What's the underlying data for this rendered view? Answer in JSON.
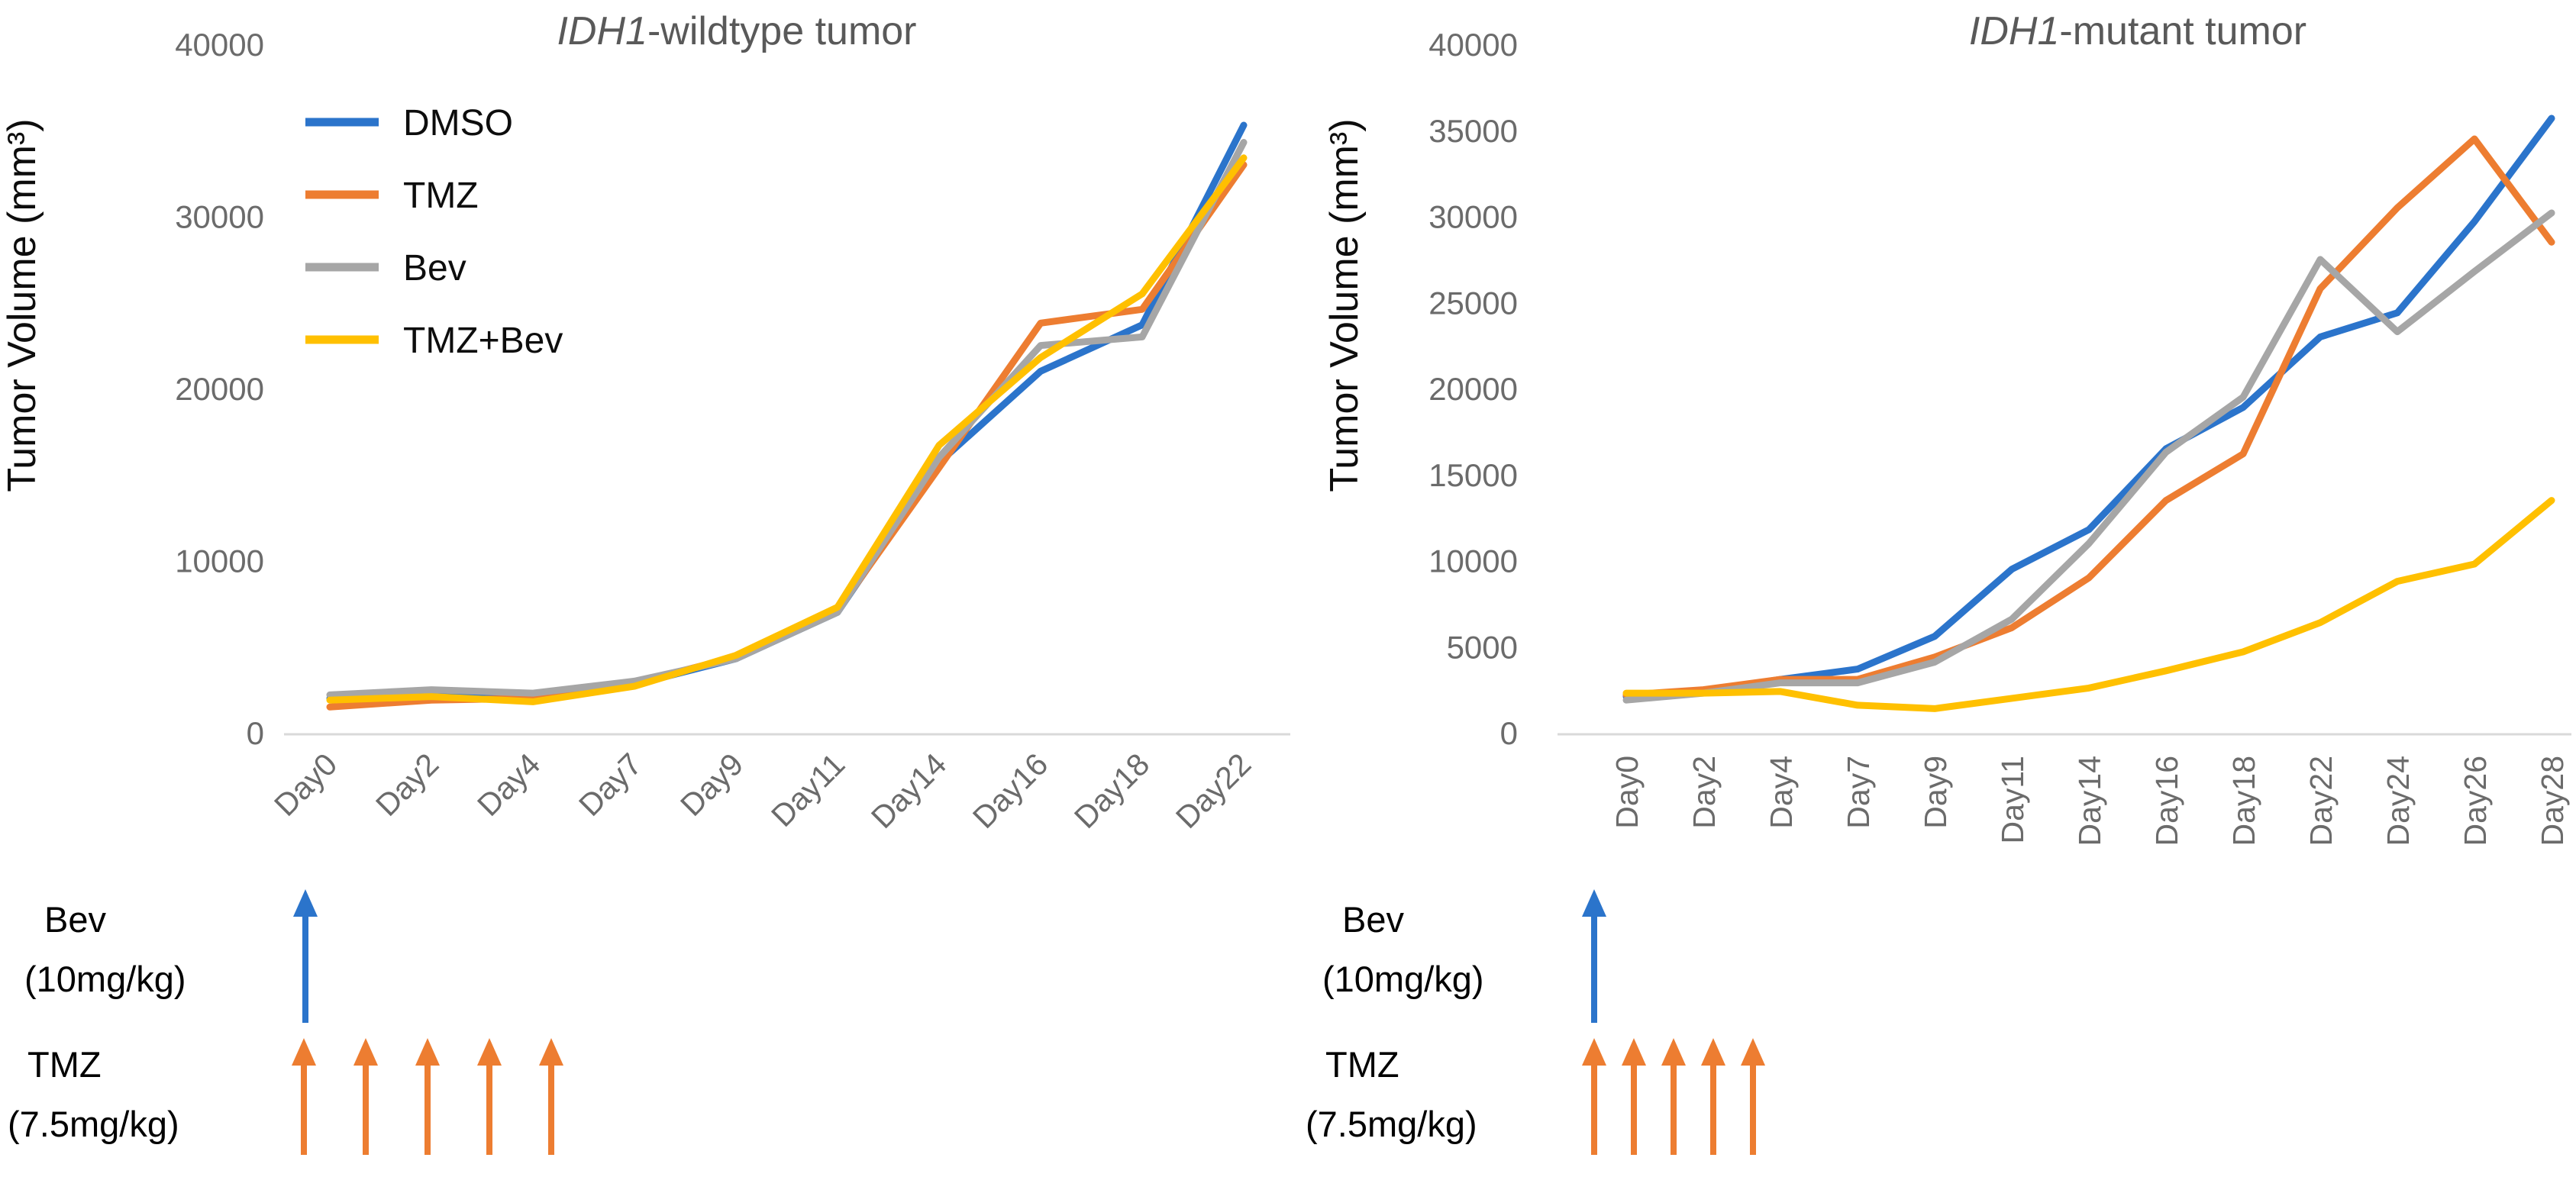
{
  "figure": {
    "background": "#FFFFFF",
    "description": "Two line charts of tumor volume over time with drug dosing schedule arrows"
  },
  "styles": {
    "series_colors": {
      "DMSO": "#2B74CB",
      "TMZ": "#ED7D31",
      "Bev": "#A6A6A6",
      "TMZ+Bev": "#FFC000"
    },
    "axis_text_color": "#6B6B6B",
    "title_color": "#595959",
    "ylabel_color": "#0D0D0D",
    "legend_text_color": "#0D0D0D",
    "annotation_text_color": "#000000",
    "axis_line_color": "#D9D9D9"
  },
  "chart_data": [
    {
      "id": "wildtype",
      "type": "line",
      "title": "IDH1-wildtype tumor",
      "title_parts": {
        "italic": "IDH1",
        "regular": "-wildtype tumor"
      },
      "xlabel": "",
      "ylabel": "Tumor Volume (mm³)",
      "ylim": [
        0,
        40000
      ],
      "ytick_step": 10000,
      "ytick_labels": [
        "0",
        "10000",
        "20000",
        "30000",
        "40000"
      ],
      "grid": false,
      "x_tick_rotation": -45,
      "legend": {
        "visible": true,
        "position": "upper-left",
        "entries": [
          "DMSO",
          "TMZ",
          "Bev",
          "TMZ+Bev"
        ]
      },
      "categories": [
        "Day0",
        "Day2",
        "Day4",
        "Day7",
        "Day9",
        "Day11",
        "Day14",
        "Day16",
        "Day18",
        "Day22"
      ],
      "series": [
        {
          "name": "DMSO",
          "color": "#2B74CB",
          "values": [
            2000,
            2100,
            2100,
            2800,
            4300,
            7000,
            15700,
            21000,
            23700,
            35300
          ]
        },
        {
          "name": "TMZ",
          "color": "#ED7D31",
          "values": [
            1500,
            1900,
            2000,
            2900,
            4400,
            7100,
            15400,
            23800,
            24600,
            33000
          ]
        },
        {
          "name": "Bev",
          "color": "#A6A6A6",
          "values": [
            2200,
            2500,
            2300,
            3000,
            4300,
            7000,
            16000,
            22500,
            23000,
            34300
          ]
        },
        {
          "name": "TMZ+Bev",
          "color": "#FFC000",
          "values": [
            1900,
            2100,
            1800,
            2700,
            4500,
            7300,
            16700,
            21800,
            25500,
            33400
          ]
        }
      ]
    },
    {
      "id": "mutant",
      "type": "line",
      "title": "IDH1-mutant tumor",
      "title_parts": {
        "italic": "IDH1",
        "regular": "-mutant tumor"
      },
      "xlabel": "",
      "ylabel": "Tumor Volume (mm³)",
      "ylim": [
        0,
        40000
      ],
      "ytick_step": 5000,
      "ytick_labels": [
        "0",
        "5000",
        "10000",
        "15000",
        "20000",
        "25000",
        "30000",
        "35000",
        "40000"
      ],
      "grid": false,
      "x_tick_rotation": -90,
      "legend": {
        "visible": false,
        "position": null,
        "entries": []
      },
      "categories": [
        "Day0",
        "Day2",
        "Day4",
        "Day7",
        "Day9",
        "Day11",
        "Day14",
        "Day16",
        "Day18",
        "Day22",
        "Day24",
        "Day26",
        "Day28"
      ],
      "series": [
        {
          "name": "DMSO",
          "color": "#2B74CB",
          "values": [
            2100,
            2400,
            3100,
            3700,
            5600,
            9500,
            11800,
            16500,
            18900,
            23000,
            24400,
            29700,
            35700
          ]
        },
        {
          "name": "TMZ",
          "color": "#ED7D31",
          "values": [
            2200,
            2500,
            3100,
            3100,
            4400,
            6100,
            9000,
            13500,
            16200,
            25800,
            30500,
            34500,
            28500
          ]
        },
        {
          "name": "Bev",
          "color": "#A6A6A6",
          "values": [
            1900,
            2300,
            2900,
            2900,
            4100,
            6600,
            11000,
            16300,
            19500,
            27500,
            23300,
            26800,
            30200
          ]
        },
        {
          "name": "TMZ+Bev",
          "color": "#FFC000",
          "values": [
            2300,
            2300,
            2400,
            1600,
            1400,
            2000,
            2600,
            3600,
            4700,
            6400,
            8800,
            9800,
            13500
          ]
        }
      ]
    }
  ],
  "annotations": [
    {
      "panel": "IDH1-wildtype tumor",
      "bev": {
        "line1": "Bev",
        "line2": "(10mg/kg)",
        "arrow_icon": "up-arrow-icon",
        "arrow_count": 1,
        "arrow_color": "#2B74CB"
      },
      "tmz": {
        "line1": "TMZ",
        "line2": "(7.5mg/kg)",
        "arrow_icon": "up-arrow-icon",
        "arrow_count": 5,
        "arrow_color": "#ED7D31"
      }
    },
    {
      "panel": "IDH1-mutant tumor",
      "bev": {
        "line1": "Bev",
        "line2": "(10mg/kg)",
        "arrow_icon": "up-arrow-icon",
        "arrow_count": 1,
        "arrow_color": "#2B74CB"
      },
      "tmz": {
        "line1": "TMZ",
        "line2": "(7.5mg/kg)",
        "arrow_icon": "up-arrow-icon",
        "arrow_count": 5,
        "arrow_color": "#ED7D31"
      }
    }
  ]
}
